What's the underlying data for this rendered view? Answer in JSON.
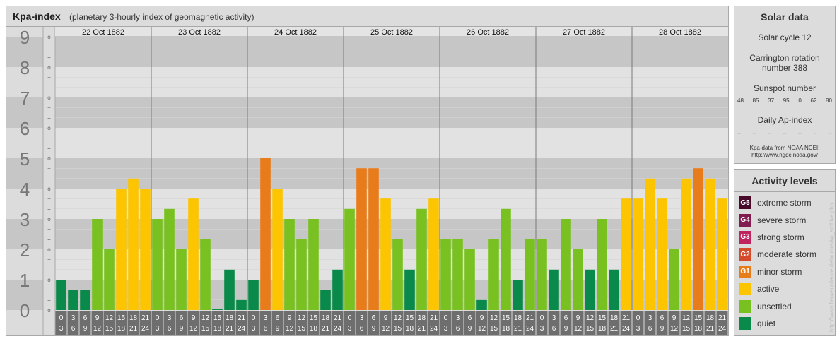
{
  "header": {
    "title": "Kpa-index",
    "subtitle": "(planetary 3-hourly index of geomagnetic activity)"
  },
  "chart_data": {
    "type": "bar",
    "days": [
      "22 Oct 1882",
      "23 Oct 1882",
      "24 Oct 1882",
      "25 Oct 1882",
      "26 Oct 1882",
      "27 Oct 1882",
      "28 Oct 1882"
    ],
    "interval_labels": [
      [
        "0",
        "3"
      ],
      [
        "3",
        "6"
      ],
      [
        "6",
        "9"
      ],
      [
        "9",
        "12"
      ],
      [
        "12",
        "15"
      ],
      [
        "15",
        "18"
      ],
      [
        "18",
        "21"
      ],
      [
        "21",
        "24"
      ]
    ],
    "y_labels": [
      "0",
      "1",
      "2",
      "3",
      "4",
      "5",
      "6",
      "7",
      "8",
      "9"
    ],
    "sub_labels": [
      "+",
      "o",
      "−"
    ],
    "ylim": [
      0,
      9
    ],
    "values": [
      1.0,
      0.67,
      0.67,
      3.0,
      2.0,
      4.0,
      4.33,
      4.0,
      3.0,
      3.33,
      2.0,
      3.67,
      2.33,
      0.0,
      1.33,
      0.33,
      1.0,
      5.0,
      4.0,
      3.0,
      2.33,
      3.0,
      0.67,
      1.33,
      3.33,
      4.67,
      4.67,
      3.67,
      2.33,
      1.33,
      3.33,
      3.67,
      2.33,
      2.33,
      2.0,
      0.33,
      2.33,
      3.33,
      1.0,
      2.33,
      2.33,
      1.33,
      3.0,
      2.0,
      1.33,
      3.0,
      1.33,
      3.67,
      3.67,
      4.33,
      3.67,
      2.0,
      4.33,
      4.67,
      4.33,
      3.67
    ],
    "level_colors": {
      "quiet": "#0a8a4a",
      "unsettled": "#79c121",
      "active": "#fcc500",
      "g1": "#e87c1a",
      "g2": "#d44c2c",
      "g3": "#c0245e",
      "g4": "#821c50",
      "g5": "#4a0a2a"
    }
  },
  "solar": {
    "title": "Solar data",
    "cycle": "Solar cycle 12",
    "carrington": "Carrington rotation number 388",
    "sunspot_title": "Sunspot number",
    "sunspots": [
      "48",
      "85",
      "37",
      "95",
      "0",
      "62",
      "80"
    ],
    "ap_title": "Daily Ap-index",
    "ap_values": [
      "--",
      "--",
      "--",
      "--",
      "--",
      "--",
      "--"
    ],
    "credit_line1": "Kpa-data from NOAA NCEI:",
    "credit_line2": "http://www.ngdc.noaa.gov/"
  },
  "levels": {
    "title": "Activity levels",
    "items": [
      {
        "badge": "G5",
        "label": "extreme storm",
        "color": "#4a0a2a"
      },
      {
        "badge": "G4",
        "label": "severe storm",
        "color": "#821c50"
      },
      {
        "badge": "G3",
        "label": "strong storm",
        "color": "#c0245e"
      },
      {
        "badge": "G2",
        "label": "moderate storm",
        "color": "#d44c2c"
      },
      {
        "badge": "G1",
        "label": "minor storm",
        "color": "#e87c1a"
      },
      {
        "badge": "",
        "label": "active",
        "color": "#fcc500"
      },
      {
        "badge": "",
        "label": "unsettled",
        "color": "#79c121"
      },
      {
        "badge": "",
        "label": "quiet",
        "color": "#0a8a4a"
      }
    ]
  },
  "side_url": "http://www.fleuveurdeuve.de/aurora/kp_archive.php"
}
